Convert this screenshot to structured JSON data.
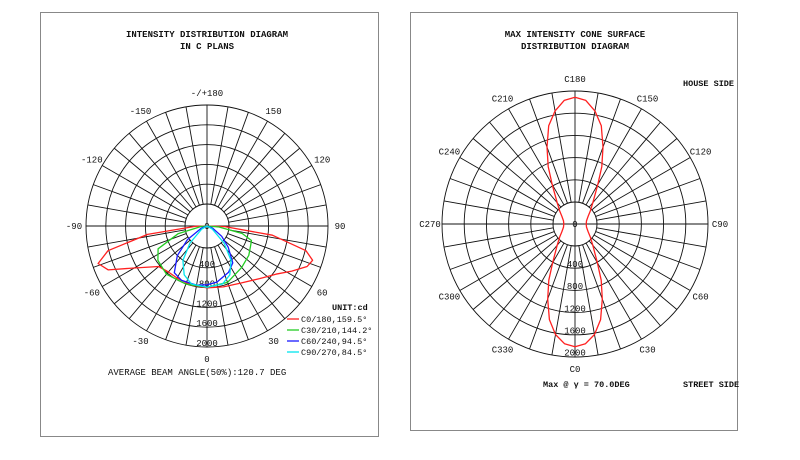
{
  "left_panel": {
    "title_line1": "INTENSITY DISTRIBUTION DIAGRAM",
    "title_line2": "IN C PLANS",
    "angle_labels": [
      {
        "deg": 180,
        "text": "-/+180"
      },
      {
        "deg": 150,
        "text": "150"
      },
      {
        "deg": 120,
        "text": "120"
      },
      {
        "deg": 90,
        "text": "90"
      },
      {
        "deg": 60,
        "text": "60"
      },
      {
        "deg": 30,
        "text": "30"
      },
      {
        "deg": 0,
        "text": "0"
      },
      {
        "deg": -30,
        "text": "-30"
      },
      {
        "deg": -60,
        "text": "-60"
      },
      {
        "deg": -90,
        "text": "-90"
      },
      {
        "deg": -120,
        "text": "-120"
      },
      {
        "deg": -150,
        "text": "-150"
      }
    ],
    "ring_labels": [
      "0",
      "400",
      "800",
      "1200",
      "1600",
      "2000"
    ],
    "unit_label": "UNIT:cd",
    "footer": "AVERAGE BEAM ANGLE(50%):120.7 DEG"
  },
  "right_panel": {
    "title_line1": "MAX INTENSITY CONE SURFACE",
    "title_line2": "DISTRIBUTION DIAGRAM",
    "angle_labels": [
      {
        "deg": 0,
        "text": "C0"
      },
      {
        "deg": 30,
        "text": "C30"
      },
      {
        "deg": 60,
        "text": "C60"
      },
      {
        "deg": 90,
        "text": "C90"
      },
      {
        "deg": 120,
        "text": "C120"
      },
      {
        "deg": 150,
        "text": "C150"
      },
      {
        "deg": 180,
        "text": "C180"
      },
      {
        "deg": 210,
        "text": "C210"
      },
      {
        "deg": 240,
        "text": "C240"
      },
      {
        "deg": 270,
        "text": "C270"
      },
      {
        "deg": 300,
        "text": "C300"
      },
      {
        "deg": 330,
        "text": "C330"
      }
    ],
    "ring_labels": [
      "0",
      "400",
      "800",
      "1200",
      "1600",
      "2000"
    ],
    "house_side": "HOUSE SIDE",
    "street_side": "STREET SIDE",
    "max_note": "Max @ γ = 70.0DEG"
  },
  "chart_data": [
    {
      "type": "polar",
      "title": "INTENSITY DISTRIBUTION DIAGRAM IN C PLANS",
      "unit": "cd",
      "radial_range": [
        0,
        2000
      ],
      "radial_ticks": [
        0,
        400,
        800,
        1200,
        1600,
        2000
      ],
      "angle_step": 10,
      "legend_position": "bottom-right",
      "series": [
        {
          "name": "C0/180,159.5°",
          "color": "#ff2020",
          "points": [
            [
              -88,
              200
            ],
            [
              -82,
              1000
            ],
            [
              -76,
              1700
            ],
            [
              -71,
              1920
            ],
            [
              -66,
              1800
            ],
            [
              -60,
              1400
            ],
            [
              -50,
              1050
            ],
            [
              -40,
              1000
            ],
            [
              -30,
              1000
            ],
            [
              -15,
              1020
            ],
            [
              0,
              1030
            ],
            [
              15,
              1050
            ],
            [
              30,
              1100
            ],
            [
              45,
              1240
            ],
            [
              55,
              1400
            ],
            [
              62,
              1600
            ],
            [
              68,
              1800
            ],
            [
              72,
              1850
            ],
            [
              76,
              1700
            ],
            [
              82,
              1100
            ],
            [
              88,
              300
            ]
          ]
        },
        {
          "name": "C30/210,144.2°",
          "color": "#22cc22",
          "points": [
            [
              -85,
              100
            ],
            [
              -75,
              500
            ],
            [
              -65,
              900
            ],
            [
              -55,
              1000
            ],
            [
              -40,
              1050
            ],
            [
              -20,
              1030
            ],
            [
              0,
              1020
            ],
            [
              20,
              1000
            ],
            [
              40,
              900
            ],
            [
              55,
              850
            ],
            [
              65,
              800
            ],
            [
              72,
              780
            ],
            [
              78,
              600
            ],
            [
              85,
              200
            ]
          ]
        },
        {
          "name": "C60/240,94.5°",
          "color": "#1a1aff",
          "points": [
            [
              -70,
              100
            ],
            [
              -55,
              400
            ],
            [
              -45,
              700
            ],
            [
              -35,
              950
            ],
            [
              -25,
              1000
            ],
            [
              -10,
              1000
            ],
            [
              0,
              980
            ],
            [
              10,
              950
            ],
            [
              25,
              850
            ],
            [
              35,
              750
            ],
            [
              45,
              500
            ],
            [
              55,
              300
            ],
            [
              70,
              100
            ]
          ]
        },
        {
          "name": "C90/270,84.5°",
          "color": "#00e5ee",
          "points": [
            [
              -60,
              100
            ],
            [
              -45,
              400
            ],
            [
              -35,
              700
            ],
            [
              -25,
              900
            ],
            [
              -15,
              1000
            ],
            [
              0,
              1020
            ],
            [
              15,
              1000
            ],
            [
              25,
              900
            ],
            [
              35,
              700
            ],
            [
              45,
              400
            ],
            [
              60,
              100
            ]
          ]
        }
      ]
    },
    {
      "type": "polar",
      "title": "MAX INTENSITY CONE SURFACE DISTRIBUTION DIAGRAM",
      "unit": "cd",
      "radial_range": [
        0,
        2000
      ],
      "radial_ticks": [
        0,
        400,
        800,
        1200,
        1600,
        2000
      ],
      "angle_step": 10,
      "series": [
        {
          "name": "γ = 70.0°",
          "color": "#ff2020",
          "points": [
            [
              0,
              1860
            ],
            [
              5,
              1820
            ],
            [
              10,
              1700
            ],
            [
              15,
              1500
            ],
            [
              20,
              1210
            ],
            [
              25,
              940
            ],
            [
              30,
              680
            ],
            [
              40,
              420
            ],
            [
              50,
              300
            ],
            [
              60,
              230
            ],
            [
              75,
              180
            ],
            [
              90,
              170
            ],
            [
              105,
              180
            ],
            [
              120,
              230
            ],
            [
              130,
              300
            ],
            [
              140,
              420
            ],
            [
              150,
              690
            ],
            [
              155,
              960
            ],
            [
              160,
              1240
            ],
            [
              165,
              1540
            ],
            [
              170,
              1740
            ],
            [
              175,
              1880
            ],
            [
              180,
              1920
            ],
            [
              185,
              1880
            ],
            [
              190,
              1740
            ],
            [
              195,
              1540
            ],
            [
              200,
              1240
            ],
            [
              205,
              960
            ],
            [
              210,
              690
            ],
            [
              220,
              420
            ],
            [
              230,
              300
            ],
            [
              240,
              230
            ],
            [
              255,
              180
            ],
            [
              270,
              170
            ],
            [
              285,
              180
            ],
            [
              300,
              230
            ],
            [
              310,
              300
            ],
            [
              320,
              420
            ],
            [
              330,
              680
            ],
            [
              335,
              940
            ],
            [
              340,
              1210
            ],
            [
              345,
              1500
            ],
            [
              350,
              1700
            ],
            [
              355,
              1820
            ],
            [
              360,
              1860
            ]
          ]
        }
      ]
    }
  ]
}
